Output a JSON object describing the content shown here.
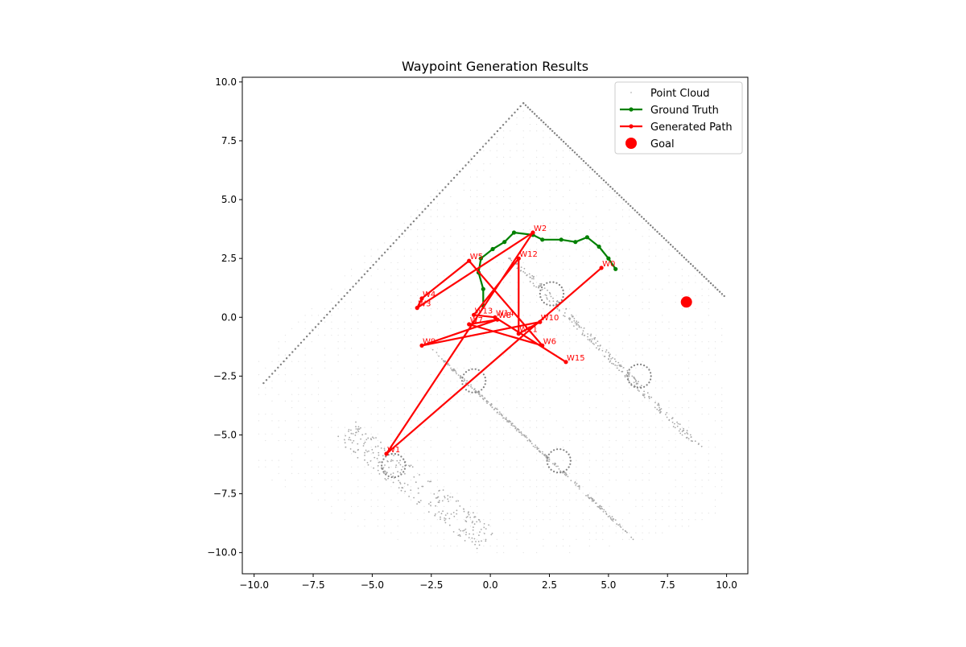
{
  "chart_data": {
    "type": "scatter",
    "title": "Waypoint Generation Results",
    "xlabel": "",
    "ylabel": "",
    "xlim": [
      -10.5,
      10.9
    ],
    "ylim": [
      -10.9,
      10.2
    ],
    "x_ticks": [
      -10.0,
      -7.5,
      -5.0,
      -2.5,
      0.0,
      2.5,
      5.0,
      7.5,
      10.0
    ],
    "x_tick_labels": [
      "−10.0",
      "−7.5",
      "−5.0",
      "−2.5",
      "0.0",
      "2.5",
      "5.0",
      "7.5",
      "10.0"
    ],
    "y_ticks": [
      10.0,
      7.5,
      5.0,
      2.5,
      0.0,
      -2.5,
      -5.0,
      -7.5,
      -10.0
    ],
    "y_tick_labels": [
      "10.0",
      "7.5",
      "5.0",
      "2.5",
      "0.0",
      "−2.5",
      "−5.0",
      "−7.5",
      "−10.0"
    ],
    "grid": false,
    "legend_position": "top-right",
    "legend": [
      {
        "label": "Point Cloud",
        "kind": "points",
        "color": "#c8c8c8"
      },
      {
        "label": "Ground Truth",
        "kind": "line",
        "color": "#008000"
      },
      {
        "label": "Generated Path",
        "kind": "line",
        "color": "#ff0000"
      },
      {
        "label": "Goal",
        "kind": "marker",
        "color": "#ff0000"
      }
    ],
    "point_cloud_walls": [
      {
        "name": "upper-left-wall",
        "from": [
          -9.6,
          -2.8
        ],
        "to": [
          1.4,
          9.1
        ],
        "color": "#808080"
      },
      {
        "name": "upper-right-wall",
        "from": [
          1.4,
          9.1
        ],
        "to": [
          9.9,
          0.9
        ],
        "color": "#808080"
      }
    ],
    "point_cloud_obstacles": [
      {
        "name": "upper-strip",
        "corners": [
          [
            0.4,
            2.8
          ],
          [
            1.6,
            2.0
          ],
          [
            9.1,
            -4.1
          ],
          [
            8.1,
            -5.0
          ]
        ]
      },
      {
        "name": "middle-strip",
        "corners": [
          [
            -2.8,
            -1.0
          ],
          [
            -1.8,
            -2.1
          ],
          [
            6.3,
            -7.9
          ],
          [
            5.3,
            -8.6
          ]
        ]
      },
      {
        "name": "lower-strip",
        "corners": [
          [
            -6.6,
            -5.2
          ],
          [
            -5.7,
            -4.4
          ],
          [
            0.6,
            -9.0
          ],
          [
            -0.6,
            -9.9
          ]
        ]
      }
    ],
    "point_cloud_rings": [
      {
        "center": [
          2.6,
          1.0
        ],
        "radius": 0.5
      },
      {
        "center": [
          6.3,
          -2.5
        ],
        "radius": 0.5
      },
      {
        "center": [
          -0.7,
          -2.7
        ],
        "radius": 0.5
      },
      {
        "center": [
          2.9,
          -6.1
        ],
        "radius": 0.5
      },
      {
        "center": [
          -4.1,
          -6.3
        ],
        "radius": 0.5
      }
    ],
    "point_cloud_fan_color": "#e0e0e0",
    "ground_truth": {
      "name": "Ground Truth",
      "color": "#008000",
      "points": [
        [
          -0.3,
          0.5
        ],
        [
          -0.3,
          1.2
        ],
        [
          -0.5,
          1.9
        ],
        [
          -0.4,
          2.5
        ],
        [
          0.1,
          2.9
        ],
        [
          0.6,
          3.2
        ],
        [
          1.0,
          3.6
        ],
        [
          1.8,
          3.5
        ],
        [
          2.2,
          3.3
        ],
        [
          3.0,
          3.3
        ],
        [
          3.6,
          3.2
        ],
        [
          4.1,
          3.4
        ],
        [
          4.6,
          3.0
        ],
        [
          5.0,
          2.5
        ],
        [
          5.3,
          2.05
        ]
      ]
    },
    "generated_path": {
      "name": "Generated Path",
      "color": "#ff0000",
      "points": [
        {
          "label": "W0",
          "x": 4.7,
          "y": 2.1
        },
        {
          "label": "W1",
          "x": -4.4,
          "y": -5.8
        },
        {
          "label": "W2",
          "x": 1.8,
          "y": 3.6
        },
        {
          "label": "W3",
          "x": -3.1,
          "y": 0.4
        },
        {
          "label": "W4",
          "x": -2.9,
          "y": 0.8
        },
        {
          "label": "W5",
          "x": -0.9,
          "y": 2.4
        },
        {
          "label": "W6",
          "x": 2.2,
          "y": -1.2
        },
        {
          "label": "W7",
          "x": -0.9,
          "y": -0.3
        },
        {
          "label": "W8",
          "x": 0.3,
          "y": -0.1
        },
        {
          "label": "W9",
          "x": -2.9,
          "y": -1.2
        },
        {
          "label": "W10",
          "x": 2.1,
          "y": -0.2
        },
        {
          "label": "W11",
          "x": 1.2,
          "y": -0.7
        },
        {
          "label": "W12",
          "x": 1.2,
          "y": 2.5
        },
        {
          "label": "W13",
          "x": -0.7,
          "y": 0.1
        },
        {
          "label": "W14",
          "x": 0.2,
          "y": 0.0
        },
        {
          "label": "W15",
          "x": 3.2,
          "y": -1.9
        }
      ]
    },
    "goal": {
      "label": "Goal",
      "x": 8.3,
      "y": 0.65,
      "color": "#ff0000"
    }
  }
}
